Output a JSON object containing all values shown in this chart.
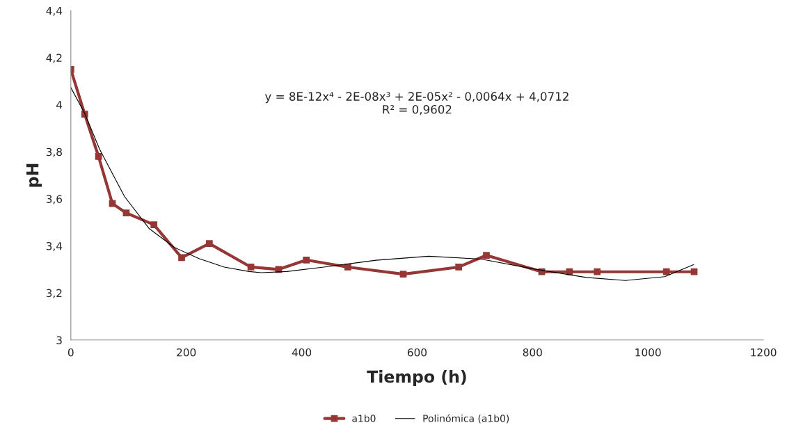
{
  "chart_data": {
    "type": "line",
    "xlabel": "Tiempo (h)",
    "ylabel": "pH",
    "annotations": [
      "y = 8E-12x⁴ - 2E-08x³ + 2E-05x² - 0,0064x + 4,0712\nR² = 0,9602"
    ],
    "series": [
      {
        "name": "a1b0",
        "color": "#953735",
        "marker": "square",
        "line_style": "solid",
        "x": [
          0,
          24,
          48,
          72,
          96,
          144,
          192,
          240,
          312,
          360,
          408,
          480,
          576,
          672,
          720,
          816,
          864,
          912,
          1032,
          1080
        ],
        "values": [
          4.15,
          3.96,
          3.78,
          3.58,
          3.54,
          3.49,
          3.35,
          3.41,
          3.31,
          3.3,
          3.34,
          3.31,
          3.28,
          3.31,
          3.36,
          3.29,
          3.29,
          3.29,
          3.29,
          3.29
        ]
      },
      {
        "name": "Polinómica (a1b0)",
        "color": "#000000",
        "marker": "none",
        "line_style": "solid",
        "x": [
          0,
          24,
          50,
          93,
          136,
          179,
          222,
          266,
          309,
          330,
          374,
          438,
          529,
          620,
          711,
          802,
          893,
          961,
          1029,
          1079
        ],
        "values": [
          4.073,
          3.963,
          3.81,
          3.61,
          3.473,
          3.394,
          3.346,
          3.31,
          3.291,
          3.286,
          3.291,
          3.31,
          3.339,
          3.356,
          3.344,
          3.302,
          3.266,
          3.253,
          3.269,
          3.32
        ]
      }
    ],
    "xlim": [
      0,
      1200
    ],
    "xticks": [
      0,
      200,
      400,
      600,
      800,
      1000,
      1200
    ],
    "ylim": [
      3,
      4.4
    ],
    "yticks": [
      3,
      {
        "value": 3.2,
        "label": "3,2"
      },
      {
        "value": 3.4,
        "label": "3,4"
      },
      {
        "value": 3.6,
        "label": "3,6"
      },
      {
        "value": 3.8,
        "label": "3,8"
      },
      4,
      {
        "value": 4.2,
        "label": "4,2"
      },
      {
        "value": 4.4,
        "label": "4,4"
      }
    ],
    "grid": false,
    "legend": "bottom"
  }
}
